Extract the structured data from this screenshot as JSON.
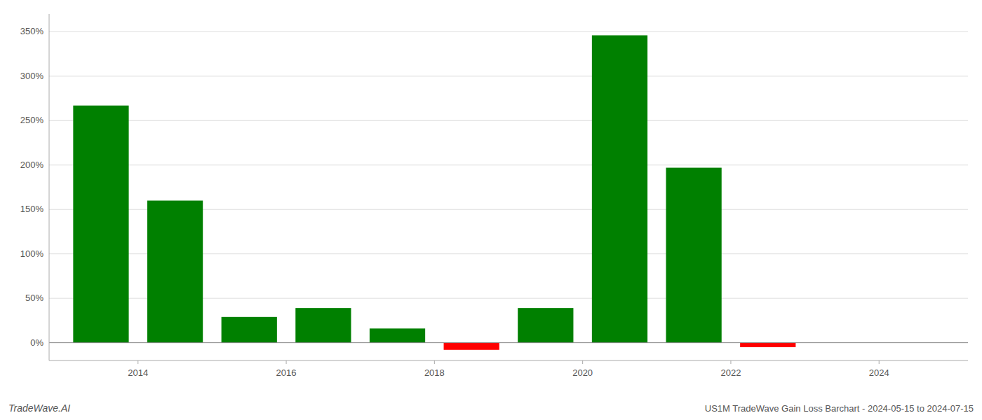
{
  "chart_data": {
    "type": "bar",
    "title": "US1M TradeWave Gain Loss Barchart - 2024-05-15 to 2024-07-15",
    "annotations": [
      "TradeWave.AI"
    ],
    "x": [
      2013.5,
      2014.5,
      2015.5,
      2016.5,
      2017.5,
      2018.5,
      2019.5,
      2020.5,
      2021.5,
      2022.5
    ],
    "values": [
      267,
      160,
      29,
      39,
      16,
      -8,
      39,
      346,
      197,
      -5
    ],
    "colors": [
      "#008000",
      "#008000",
      "#008000",
      "#008000",
      "#008000",
      "#ff0000",
      "#008000",
      "#008000",
      "#008000",
      "#ff0000"
    ],
    "xlim": [
      2012.8,
      2025.2
    ],
    "xticks": [
      2014,
      2016,
      2018,
      2020,
      2022,
      2024
    ],
    "ylim": [
      -20,
      370
    ],
    "yticks": [
      {
        "value": 0,
        "label": "0%"
      },
      {
        "value": 50,
        "label": "50%"
      },
      {
        "value": 100,
        "label": "100%"
      },
      {
        "value": 150,
        "label": "150%"
      },
      {
        "value": 200,
        "label": "200%"
      },
      {
        "value": 250,
        "label": "250%"
      },
      {
        "value": 300,
        "label": "300%"
      },
      {
        "value": 350,
        "label": "350%"
      }
    ],
    "grid": true
  }
}
